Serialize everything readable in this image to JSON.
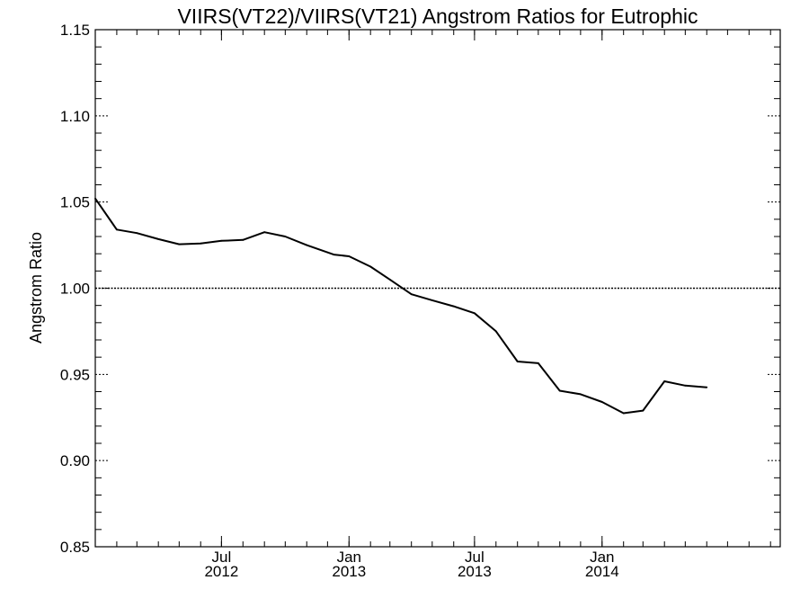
{
  "chart_data": {
    "type": "line",
    "title": "VIIRS(VT22)/VIIRS(VT21)  Angstrom Ratios for Eutrophic",
    "ylabel": "Angstrom Ratio",
    "ylim": [
      0.85,
      1.15
    ],
    "xlim": [
      "2012-01-01",
      "2014-09-15"
    ],
    "y_ticks": [
      {
        "value": 0.85,
        "label": "0.85"
      },
      {
        "value": 0.9,
        "label": "0.90"
      },
      {
        "value": 0.95,
        "label": "0.95"
      },
      {
        "value": 1.0,
        "label": "1.00"
      },
      {
        "value": 1.05,
        "label": "1.05"
      },
      {
        "value": 1.1,
        "label": "1.10"
      },
      {
        "value": 1.15,
        "label": "1.15"
      }
    ],
    "x_ticks": [
      {
        "date": "2012-07-01",
        "month": "Jul",
        "year": "2012"
      },
      {
        "date": "2013-01-01",
        "month": "Jan",
        "year": "2013"
      },
      {
        "date": "2013-07-01",
        "month": "Jul",
        "year": "2013"
      },
      {
        "date": "2014-01-01",
        "month": "Jan",
        "year": "2014"
      }
    ],
    "reference_line": 1.0,
    "series": [
      {
        "points": [
          {
            "x": "2012-01-01",
            "y": 1.052
          },
          {
            "x": "2012-02-01",
            "y": 1.034
          },
          {
            "x": "2012-03-01",
            "y": 1.032
          },
          {
            "x": "2012-04-01",
            "y": 1.0285
          },
          {
            "x": "2012-05-01",
            "y": 1.0255
          },
          {
            "x": "2012-06-01",
            "y": 1.026
          },
          {
            "x": "2012-07-01",
            "y": 1.0275
          },
          {
            "x": "2012-08-01",
            "y": 1.028
          },
          {
            "x": "2012-09-01",
            "y": 1.0325
          },
          {
            "x": "2012-10-01",
            "y": 1.03
          },
          {
            "x": "2012-11-01",
            "y": 1.025
          },
          {
            "x": "2012-12-10",
            "y": 1.0195
          },
          {
            "x": "2013-01-01",
            "y": 1.0185
          },
          {
            "x": "2013-02-01",
            "y": 1.0125
          },
          {
            "x": "2013-03-01",
            "y": 1.005
          },
          {
            "x": "2013-04-01",
            "y": 0.9965
          },
          {
            "x": "2013-05-01",
            "y": 0.993
          },
          {
            "x": "2013-06-01",
            "y": 0.9895
          },
          {
            "x": "2013-07-01",
            "y": 0.9855
          },
          {
            "x": "2013-08-01",
            "y": 0.975
          },
          {
            "x": "2013-09-01",
            "y": 0.9575
          },
          {
            "x": "2013-10-01",
            "y": 0.9565
          },
          {
            "x": "2013-11-01",
            "y": 0.9405
          },
          {
            "x": "2013-12-01",
            "y": 0.9385
          },
          {
            "x": "2014-01-01",
            "y": 0.934
          },
          {
            "x": "2014-02-01",
            "y": 0.9275
          },
          {
            "x": "2014-03-01",
            "y": 0.929
          },
          {
            "x": "2014-04-01",
            "y": 0.946
          },
          {
            "x": "2014-05-01",
            "y": 0.9435
          },
          {
            "x": "2014-06-01",
            "y": 0.9425
          }
        ]
      }
    ]
  }
}
